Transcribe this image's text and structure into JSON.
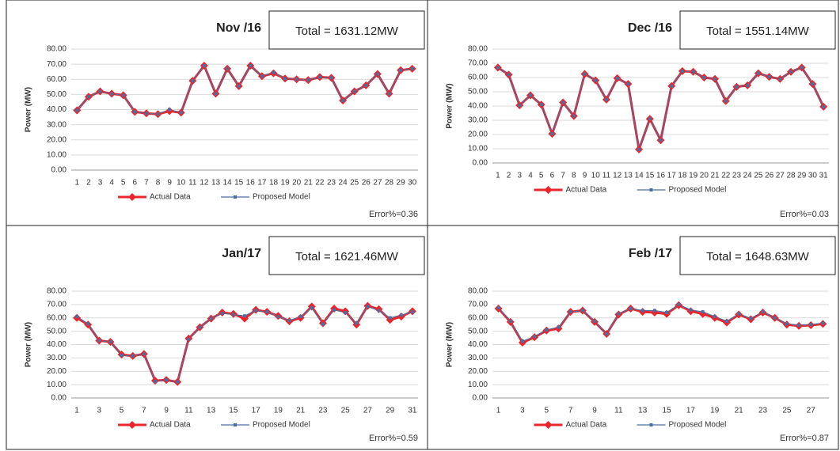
{
  "chart_data": [
    {
      "type": "line",
      "title": "Nov /16",
      "total_box": "Total = 1631.12MW",
      "error_label": "Error%=0.36",
      "y_label": "Power (MW)",
      "categories": [
        "1",
        "2",
        "3",
        "4",
        "5",
        "6",
        "7",
        "8",
        "9",
        "10",
        "11",
        "12",
        "13",
        "14",
        "15",
        "16",
        "17",
        "18",
        "19",
        "20",
        "21",
        "22",
        "23",
        "24",
        "25",
        "26",
        "27",
        "28",
        "29",
        "30"
      ],
      "series": [
        {
          "name": "Actual Data",
          "color": "#e8262c",
          "values": [
            39.5,
            48.5,
            52,
            50.5,
            49.5,
            38.5,
            37.5,
            37,
            39,
            38,
            59,
            69,
            50.5,
            67,
            55.5,
            69,
            62,
            64,
            60.5,
            60,
            59.5,
            61.5,
            61,
            46,
            52,
            56,
            63.5,
            50.5,
            66,
            67
          ]
        },
        {
          "name": "Proposed Model",
          "color": "#4a6fa5",
          "values": [
            39.5,
            48.5,
            52,
            50.5,
            49.5,
            38.5,
            37.5,
            37,
            40,
            38,
            59,
            69,
            50.5,
            67,
            55.5,
            69,
            62,
            64.5,
            60.5,
            60,
            59.5,
            61.5,
            61,
            46,
            52,
            56,
            63.5,
            50.5,
            66,
            67
          ]
        }
      ],
      "ylim": [
        0,
        80
      ],
      "yticks": [
        {
          "value": 0,
          "label": "0.00"
        },
        {
          "value": 10,
          "label": "10.00"
        },
        {
          "value": 20,
          "label": "20.00"
        },
        {
          "value": 30,
          "label": "30.00"
        },
        {
          "value": 40,
          "label": "40.00"
        },
        {
          "value": 50,
          "label": "50.00"
        },
        {
          "value": 60,
          "label": "60.00"
        },
        {
          "value": 70,
          "label": "70.00"
        },
        {
          "value": 80,
          "label": "80.00"
        }
      ],
      "grid": true
    },
    {
      "type": "line",
      "title": "Dec /16",
      "total_box": "Total = 1551.14MW",
      "error_label": "Error%=0.03",
      "y_label": "Power (MW)",
      "categories": [
        "1",
        "2",
        "3",
        "4",
        "5",
        "6",
        "7",
        "8",
        "9",
        "10",
        "11",
        "12",
        "13",
        "14",
        "15",
        "16",
        "17",
        "18",
        "19",
        "20",
        "21",
        "22",
        "23",
        "24",
        "25",
        "26",
        "27",
        "28",
        "29",
        "30",
        "31"
      ],
      "series": [
        {
          "name": "Actual Data",
          "color": "#e8262c",
          "values": [
            67,
            62,
            40.5,
            47.5,
            41,
            20.5,
            42.5,
            33,
            62.5,
            58,
            44.5,
            59.5,
            55.5,
            9.5,
            31,
            16,
            54,
            64.5,
            64,
            60,
            59,
            43.5,
            53.5,
            54.5,
            63,
            60.5,
            59,
            64,
            67,
            55.5,
            39.5
          ]
        },
        {
          "name": "Proposed Model",
          "color": "#4a6fa5",
          "values": [
            67,
            62,
            40.5,
            47.5,
            41,
            20.5,
            42.5,
            33,
            62.5,
            58,
            44.5,
            59.5,
            55.5,
            9.5,
            31,
            16,
            54,
            64.5,
            64,
            60,
            59,
            43.5,
            53.5,
            54.5,
            63,
            60.5,
            59,
            64,
            67,
            55.5,
            39.5
          ]
        }
      ],
      "ylim": [
        0,
        80
      ],
      "yticks": [
        {
          "value": 0,
          "label": "0.00"
        },
        {
          "value": 10,
          "label": "10.00"
        },
        {
          "value": 20,
          "label": "20.00"
        },
        {
          "value": 30,
          "label": "30.00"
        },
        {
          "value": 40,
          "label": "40.00"
        },
        {
          "value": 50,
          "label": "50.00"
        },
        {
          "value": 60,
          "label": "60.00"
        },
        {
          "value": 70,
          "label": "70.00"
        },
        {
          "value": 80,
          "label": "80.00"
        }
      ],
      "grid": true
    },
    {
      "type": "line",
      "title": "Jan/17",
      "total_box": "Total = 1621.46MW",
      "error_label": "Error%=0.59",
      "y_label": "Power (MW)",
      "categories": [
        "1",
        null,
        "3",
        null,
        "5",
        null,
        "7",
        null,
        "9",
        null,
        "11",
        null,
        "13",
        null,
        "15",
        null,
        "17",
        null,
        "19",
        null,
        "21",
        null,
        "23",
        null,
        "25",
        null,
        "27",
        null,
        "29",
        null,
        "31"
      ],
      "series": [
        {
          "name": "Actual Data",
          "color": "#e8262c",
          "values": [
            60,
            55,
            43,
            42,
            32.5,
            31.5,
            33,
            13,
            13.5,
            12,
            44.5,
            53,
            59.5,
            64,
            63,
            59.5,
            66,
            64.5,
            61.5,
            57.5,
            60,
            68.5,
            56,
            67,
            65,
            55,
            69,
            66.5,
            58.5,
            61,
            65
          ]
        },
        {
          "name": "Proposed Model",
          "color": "#4a6fa5",
          "values": [
            61,
            55.5,
            43,
            42,
            32,
            31.5,
            33,
            12.5,
            13.5,
            12,
            44,
            53,
            59.5,
            63.5,
            62.5,
            61.5,
            65.5,
            64.5,
            61,
            58,
            61,
            67.5,
            55.5,
            66,
            64,
            56,
            68.5,
            65.5,
            60,
            62,
            64.5
          ]
        }
      ],
      "ylim": [
        0,
        80
      ],
      "yticks": [
        {
          "value": 0,
          "label": "0.00"
        },
        {
          "value": 10,
          "label": "10.00"
        },
        {
          "value": 20,
          "label": "20.00"
        },
        {
          "value": 30,
          "label": "30.00"
        },
        {
          "value": 40,
          "label": "40.00"
        },
        {
          "value": 50,
          "label": "50.00"
        },
        {
          "value": 60,
          "label": "60.00"
        },
        {
          "value": 70,
          "label": "70.00"
        },
        {
          "value": 80,
          "label": "80.00"
        }
      ],
      "grid": true
    },
    {
      "type": "line",
      "title": "Feb /17",
      "total_box": "Total = 1648.63MW",
      "error_label": "Error%=0.87",
      "y_label": "Power (MW)",
      "categories": [
        "1",
        null,
        "3",
        null,
        "5",
        null,
        "7",
        null,
        "9",
        null,
        "11",
        null,
        "13",
        null,
        "15",
        null,
        "17",
        null,
        "19",
        null,
        "21",
        null,
        "23",
        null,
        "25",
        null,
        "27",
        null
      ],
      "series": [
        {
          "name": "Actual Data",
          "color": "#e8262c",
          "values": [
            67,
            57,
            41.5,
            45.5,
            50.5,
            52,
            64.5,
            65.5,
            57,
            48,
            62.5,
            67,
            64.5,
            64,
            63,
            69.5,
            65,
            63,
            60,
            56.5,
            62.5,
            59,
            64,
            60,
            55,
            54,
            54.5,
            55.5
          ]
        },
        {
          "name": "Proposed Model",
          "color": "#4a6fa5",
          "values": [
            67.5,
            57.5,
            42.5,
            46,
            51,
            53,
            64.5,
            65.5,
            57.5,
            48,
            63,
            67,
            65.5,
            65.5,
            64,
            70,
            66,
            64.5,
            61,
            57.5,
            63,
            59.5,
            64.5,
            60,
            55.5,
            54.5,
            55,
            56
          ]
        }
      ],
      "ylim": [
        0,
        80
      ],
      "yticks": [
        {
          "value": 0,
          "label": "0.00"
        },
        {
          "value": 10,
          "label": "10.00"
        },
        {
          "value": 20,
          "label": "20.00"
        },
        {
          "value": 30,
          "label": "30.00"
        },
        {
          "value": 40,
          "label": "40.00"
        },
        {
          "value": 50,
          "label": "50.00"
        },
        {
          "value": 60,
          "label": "60.00"
        },
        {
          "value": 70,
          "label": "70.00"
        },
        {
          "value": 80,
          "label": "80.00"
        }
      ],
      "grid": true
    }
  ]
}
